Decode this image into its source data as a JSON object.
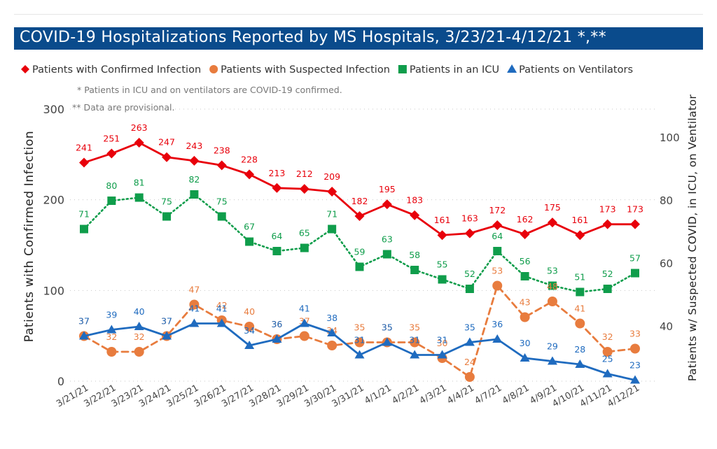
{
  "header": {
    "title": "COVID-19 Hospitalizations Reported by MS Hospitals, 3/23/21-4/12/21 *,**"
  },
  "chart_data": {
    "type": "line",
    "legend_position": "top-left",
    "legend": [
      {
        "label": "Patients with Confirmed Infection",
        "color": "#e8000b",
        "marker": "diamond-icon"
      },
      {
        "label": "Patients with Suspected Infection",
        "color": "#e87c3e",
        "marker": "circle-icon"
      },
      {
        "label": "Patients in an ICU",
        "color": "#0f9d4b",
        "marker": "square-icon"
      },
      {
        "label": "Patients on Ventilators",
        "color": "#1f6bbf",
        "marker": "triangle-icon"
      }
    ],
    "notes": [
      "* Patients in ICU and on ventilators are COVID-19 confirmed.",
      "** Data are provisional."
    ],
    "categories": [
      "3/21/21",
      "3/22/21",
      "3/23/21",
      "3/24/21",
      "3/25/21",
      "3/26/21",
      "3/27/21",
      "3/28/21",
      "3/29/21",
      "3/30/21",
      "3/31/21",
      "4/1/21",
      "4/2/21",
      "4/3/21",
      "4/4/21",
      "4/7/21",
      "4/8/21",
      "4/9/21",
      "4/10/21",
      "4/11/21",
      "4/12/21"
    ],
    "y_left": {
      "label": "Patients with Confirmed Infection",
      "range": [
        0,
        300
      ],
      "ticks": [
        0,
        100,
        200,
        300
      ]
    },
    "y_right": {
      "label": "Patients w/ Suspected COVID, in ICU, on Ventilator",
      "range": [
        22,
        110
      ],
      "ticks": [
        40,
        60,
        80,
        100
      ]
    },
    "grid": "dotted, at left-axis ticks",
    "series": [
      {
        "name": "Patients with Confirmed Infection",
        "axis": "left",
        "color": "#e8000b",
        "marker": "diamond",
        "line": "solid",
        "labels_above": true,
        "values": [
          241,
          251,
          263,
          247,
          243,
          238,
          228,
          213,
          212,
          209,
          182,
          195,
          183,
          161,
          163,
          172,
          162,
          175,
          161,
          173,
          173
        ]
      },
      {
        "name": "Patients in an ICU",
        "axis": "right",
        "color": "#0f9d4b",
        "marker": "square",
        "line": "dotted",
        "labels_above": true,
        "values": [
          71,
          80,
          81,
          75,
          82,
          75,
          67,
          64,
          65,
          71,
          59,
          63,
          58,
          55,
          52,
          64,
          56,
          53,
          51,
          52,
          57
        ]
      },
      {
        "name": "Patients with Suspected Infection",
        "axis": "right",
        "color": "#e87c3e",
        "marker": "circle",
        "line": "dashed",
        "labels_above": true,
        "values": [
          37,
          32,
          32,
          37,
          47,
          42,
          40,
          36,
          37,
          34,
          35,
          35,
          35,
          30,
          24,
          53,
          43,
          48,
          41,
          32,
          33
        ]
      },
      {
        "name": "Patients on Ventilators",
        "axis": "right",
        "color": "#1f6bbf",
        "marker": "triangle",
        "line": "solid",
        "labels_above": true,
        "values": [
          37,
          39,
          40,
          37,
          41,
          41,
          34,
          36,
          41,
          38,
          31,
          35,
          31,
          31,
          35,
          36,
          30,
          29,
          28,
          25,
          23
        ]
      }
    ]
  }
}
